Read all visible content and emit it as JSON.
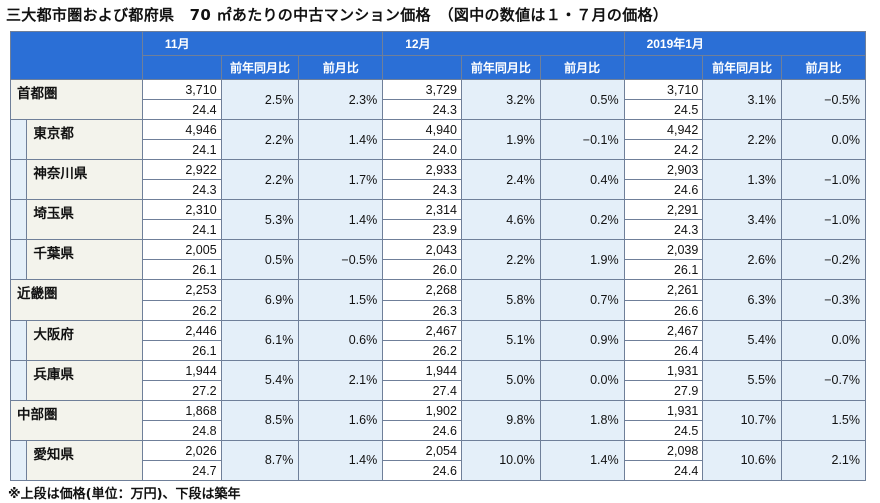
{
  "title": "三大都市圏および都府県　70 ㎡あたりの中古マンション価格　（図中の数値は１・７月の価格）",
  "footnote": "※上段は価格(単位：万円)、下段は築年",
  "months": [
    "11月",
    "12月",
    "2019年1月"
  ],
  "subheaders": {
    "yoy": "前年同月比",
    "mom": "前月比"
  },
  "colors": {
    "header_bg": "#2b6fd6",
    "pct_bg": "#e4eff9",
    "label_bg": "#f3f3ec",
    "grid": "#6f7f99"
  },
  "rows": [
    {
      "name": "首都圏",
      "region": true,
      "cells": [
        {
          "price": "3,710",
          "age": "24.4",
          "yoy": "2.5%",
          "mom": "2.3%"
        },
        {
          "price": "3,729",
          "age": "24.3",
          "yoy": "3.2%",
          "mom": "0.5%"
        },
        {
          "price": "3,710",
          "age": "24.5",
          "yoy": "3.1%",
          "mom": "−0.5%"
        }
      ]
    },
    {
      "name": "東京都",
      "region": false,
      "cells": [
        {
          "price": "4,946",
          "age": "24.1",
          "yoy": "2.2%",
          "mom": "1.4%"
        },
        {
          "price": "4,940",
          "age": "24.0",
          "yoy": "1.9%",
          "mom": "−0.1%"
        },
        {
          "price": "4,942",
          "age": "24.2",
          "yoy": "2.2%",
          "mom": "0.0%"
        }
      ]
    },
    {
      "name": "神奈川県",
      "region": false,
      "cells": [
        {
          "price": "2,922",
          "age": "24.3",
          "yoy": "2.2%",
          "mom": "1.7%"
        },
        {
          "price": "2,933",
          "age": "24.3",
          "yoy": "2.4%",
          "mom": "0.4%"
        },
        {
          "price": "2,903",
          "age": "24.6",
          "yoy": "1.3%",
          "mom": "−1.0%"
        }
      ]
    },
    {
      "name": "埼玉県",
      "region": false,
      "cells": [
        {
          "price": "2,310",
          "age": "24.1",
          "yoy": "5.3%",
          "mom": "1.4%"
        },
        {
          "price": "2,314",
          "age": "23.9",
          "yoy": "4.6%",
          "mom": "0.2%"
        },
        {
          "price": "2,291",
          "age": "24.3",
          "yoy": "3.4%",
          "mom": "−1.0%"
        }
      ]
    },
    {
      "name": "千葉県",
      "region": false,
      "cells": [
        {
          "price": "2,005",
          "age": "26.1",
          "yoy": "0.5%",
          "mom": "−0.5%"
        },
        {
          "price": "2,043",
          "age": "26.0",
          "yoy": "2.2%",
          "mom": "1.9%"
        },
        {
          "price": "2,039",
          "age": "26.1",
          "yoy": "2.6%",
          "mom": "−0.2%"
        }
      ]
    },
    {
      "name": "近畿圏",
      "region": true,
      "cells": [
        {
          "price": "2,253",
          "age": "26.2",
          "yoy": "6.9%",
          "mom": "1.5%"
        },
        {
          "price": "2,268",
          "age": "26.3",
          "yoy": "5.8%",
          "mom": "0.7%"
        },
        {
          "price": "2,261",
          "age": "26.6",
          "yoy": "6.3%",
          "mom": "−0.3%"
        }
      ]
    },
    {
      "name": "大阪府",
      "region": false,
      "cells": [
        {
          "price": "2,446",
          "age": "26.1",
          "yoy": "6.1%",
          "mom": "0.6%"
        },
        {
          "price": "2,467",
          "age": "26.2",
          "yoy": "5.1%",
          "mom": "0.9%"
        },
        {
          "price": "2,467",
          "age": "26.4",
          "yoy": "5.4%",
          "mom": "0.0%"
        }
      ]
    },
    {
      "name": "兵庫県",
      "region": false,
      "cells": [
        {
          "price": "1,944",
          "age": "27.2",
          "yoy": "5.4%",
          "mom": "2.1%"
        },
        {
          "price": "1,944",
          "age": "27.4",
          "yoy": "5.0%",
          "mom": "0.0%"
        },
        {
          "price": "1,931",
          "age": "27.9",
          "yoy": "5.5%",
          "mom": "−0.7%"
        }
      ]
    },
    {
      "name": "中部圏",
      "region": true,
      "cells": [
        {
          "price": "1,868",
          "age": "24.8",
          "yoy": "8.5%",
          "mom": "1.6%"
        },
        {
          "price": "1,902",
          "age": "24.6",
          "yoy": "9.8%",
          "mom": "1.8%"
        },
        {
          "price": "1,931",
          "age": "24.5",
          "yoy": "10.7%",
          "mom": "1.5%"
        }
      ]
    },
    {
      "name": "愛知県",
      "region": false,
      "cells": [
        {
          "price": "2,026",
          "age": "24.7",
          "yoy": "8.7%",
          "mom": "1.4%"
        },
        {
          "price": "2,054",
          "age": "24.6",
          "yoy": "10.0%",
          "mom": "1.4%"
        },
        {
          "price": "2,098",
          "age": "24.4",
          "yoy": "10.6%",
          "mom": "2.1%"
        }
      ]
    }
  ]
}
